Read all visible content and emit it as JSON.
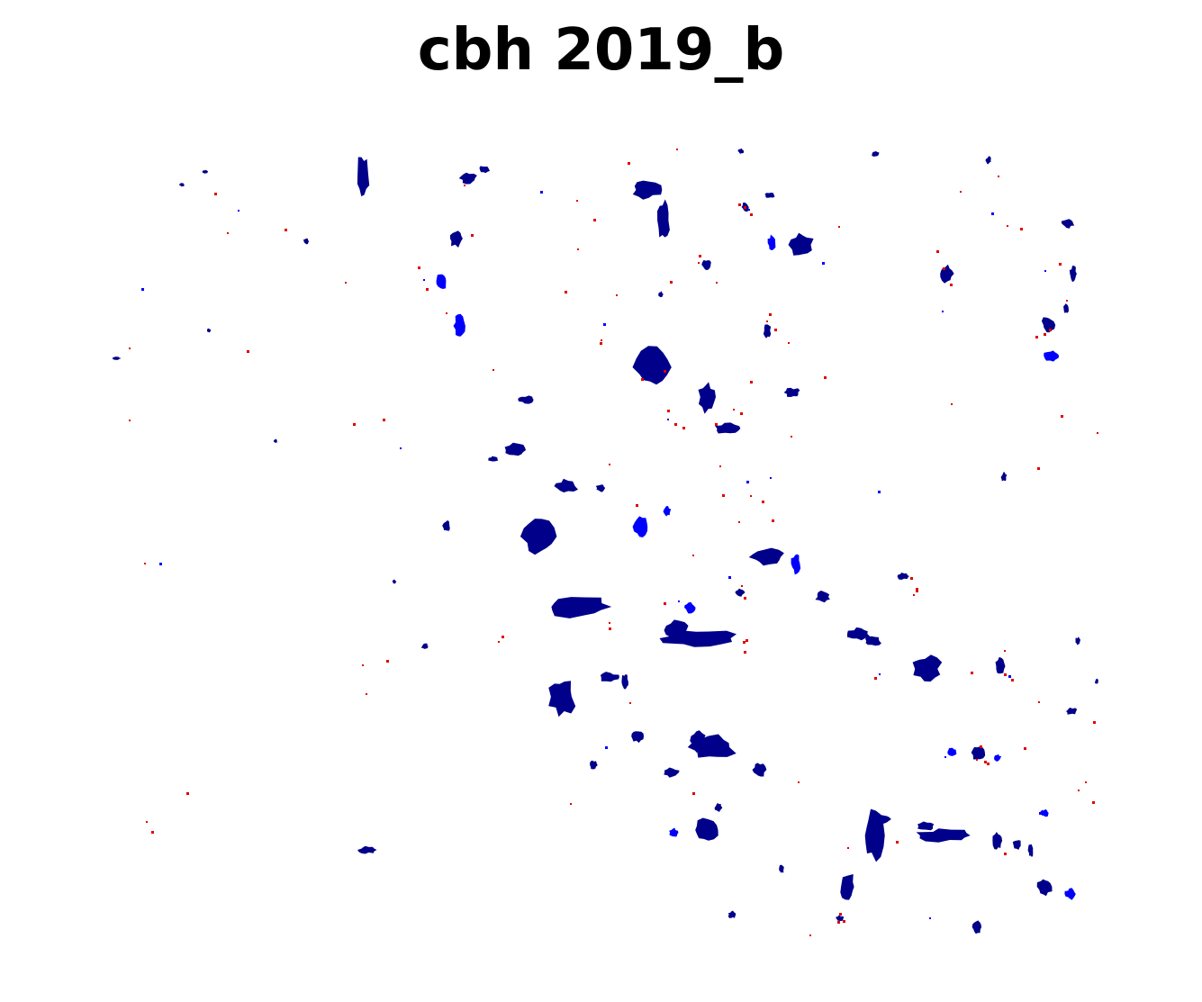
{
  "title": "cbh 2019_b",
  "map": {
    "background_color": "#ffffff",
    "palette": {
      "primary_patches": "#00008b",
      "secondary_patches": "#0000ff",
      "speckle_pixels": "#e00000"
    },
    "legend": "none",
    "axes": "none",
    "grid": false
  }
}
